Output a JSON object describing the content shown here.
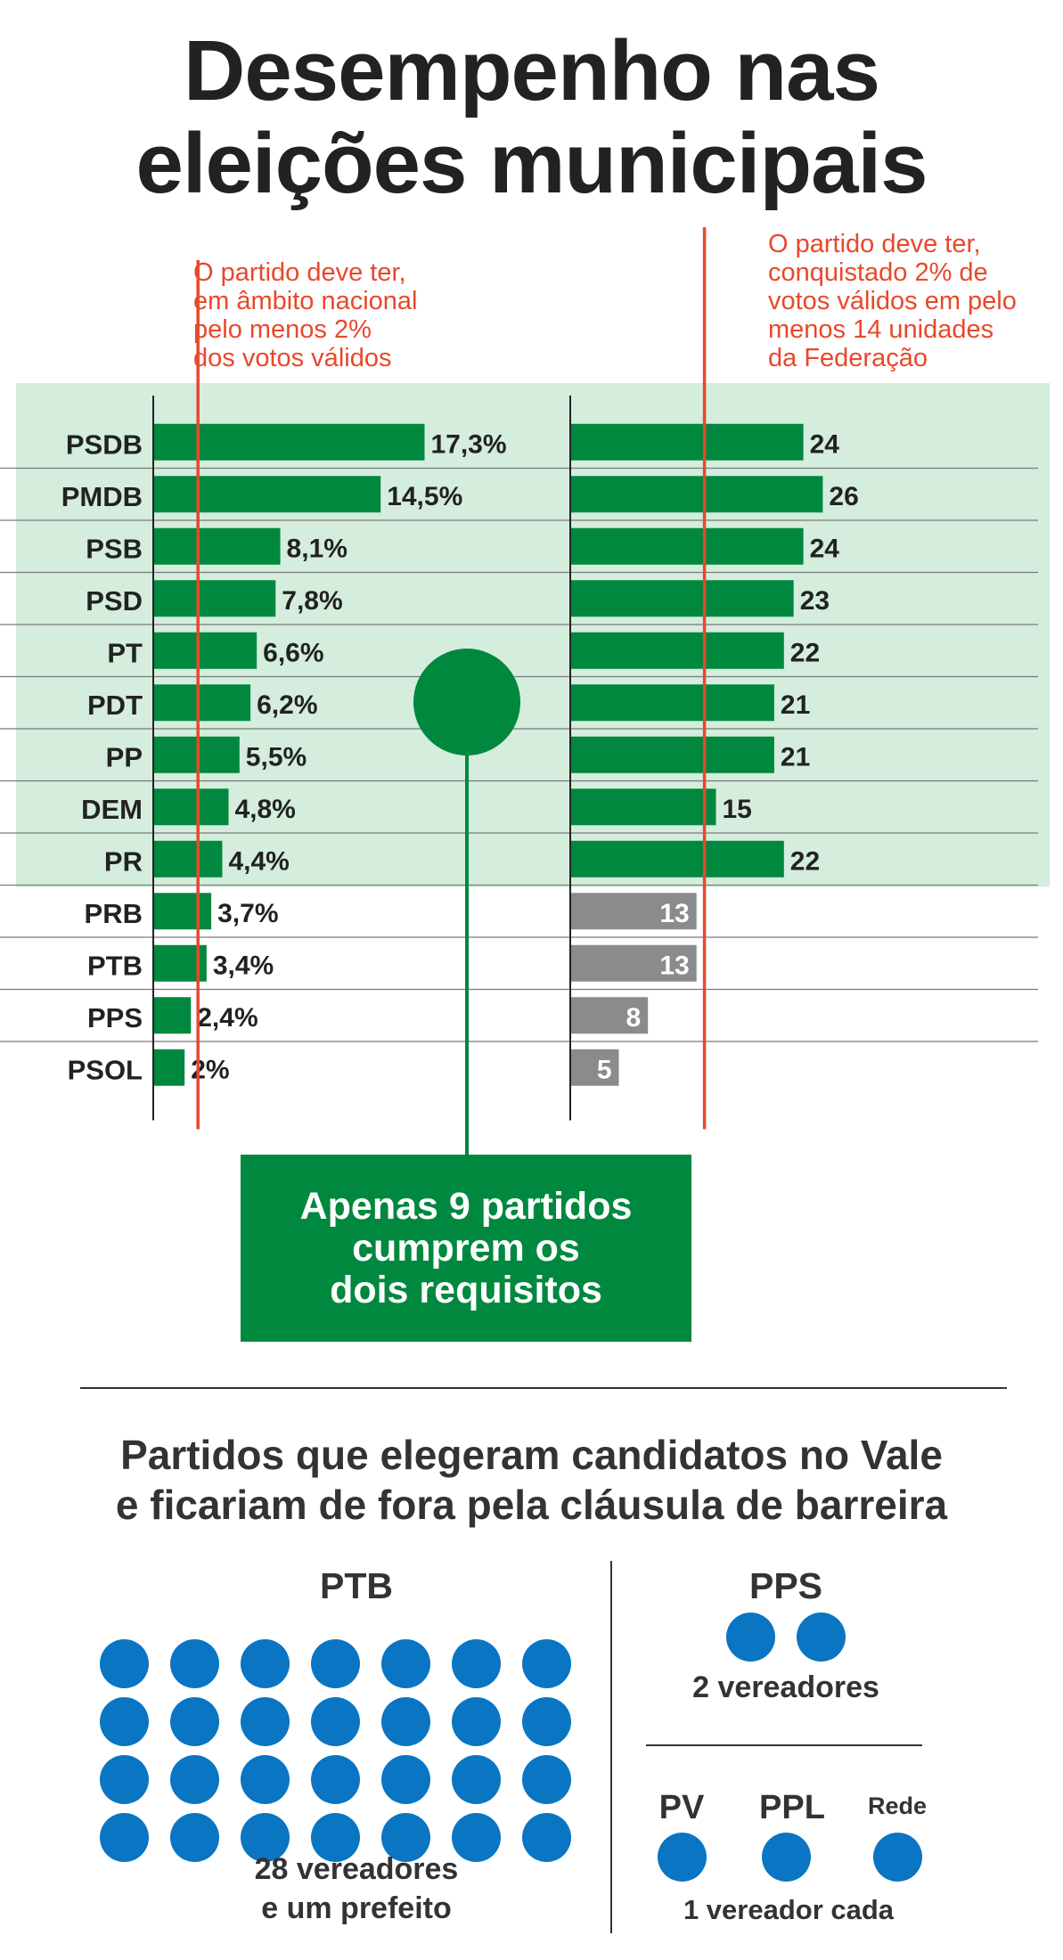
{
  "title": [
    "Desempenho nas",
    "eleições municipais"
  ],
  "notes": {
    "left": [
      "O partido deve ter,",
      "em âmbito nacional",
      "pelo menos 2%",
      "dos votos válidos"
    ],
    "right": [
      "O partido deve ter,",
      "conquistado 2% de",
      "votos válidos em pelo",
      "menos 14 unidades",
      "da Federação"
    ]
  },
  "colors": {
    "qualify_bg": "#d4eddd",
    "bar_green": "#00883f",
    "bar_gray": "#8a8b8d",
    "threshold_red": "#e8482b",
    "dot_blue": "#0a75c2"
  },
  "chart_data": [
    {
      "type": "bar",
      "orientation": "horizontal",
      "categories": [
        "PSDB",
        "PMDB",
        "PSB",
        "PSD",
        "PT",
        "PDT",
        "PP",
        "DEM",
        "PR",
        "PRB",
        "PTB",
        "PPS",
        "PSOL"
      ],
      "values": [
        17.3,
        14.5,
        8.1,
        7.8,
        6.6,
        6.2,
        5.5,
        4.8,
        4.4,
        3.7,
        3.4,
        2.4,
        2
      ],
      "labels": [
        "17,3%",
        "14,5%",
        "8,1%",
        "7,8%",
        "6,6%",
        "6,2%",
        "5,5%",
        "4,8%",
        "4,4%",
        "3,7%",
        "3,4%",
        "2,4%",
        "2%"
      ],
      "threshold": 2,
      "xlim": [
        0,
        20
      ]
    },
    {
      "type": "bar",
      "orientation": "horizontal",
      "categories": [
        "PSDB",
        "PMDB",
        "PSB",
        "PSD",
        "PT",
        "PDT",
        "PP",
        "DEM",
        "PR",
        "PRB",
        "PTB",
        "PPS",
        "PSOL"
      ],
      "values": [
        24,
        26,
        24,
        23,
        22,
        21,
        21,
        15,
        22,
        13,
        13,
        8,
        5
      ],
      "threshold": 14,
      "xlim": [
        0,
        27
      ],
      "qualifying_count": 9
    }
  ],
  "callout": [
    "Apenas 9 partidos",
    "cumprem os",
    "dois requisitos"
  ],
  "subtitle": [
    "Partidos que elegeram candidatos no Vale",
    "e ficariam de fora pela cláusula de barreira"
  ],
  "bottom": {
    "ptb": {
      "label": "PTB",
      "dots": 28,
      "caption": [
        "28 vereadores",
        "e um prefeito"
      ]
    },
    "pps": {
      "label": "PPS",
      "dots": 2,
      "caption": "2 vereadores"
    },
    "small": [
      {
        "label": "PV",
        "dots": 1
      },
      {
        "label": "PPL",
        "dots": 1
      },
      {
        "label": "Rede",
        "dots": 1
      }
    ],
    "small_caption": "1 vereador cada"
  }
}
